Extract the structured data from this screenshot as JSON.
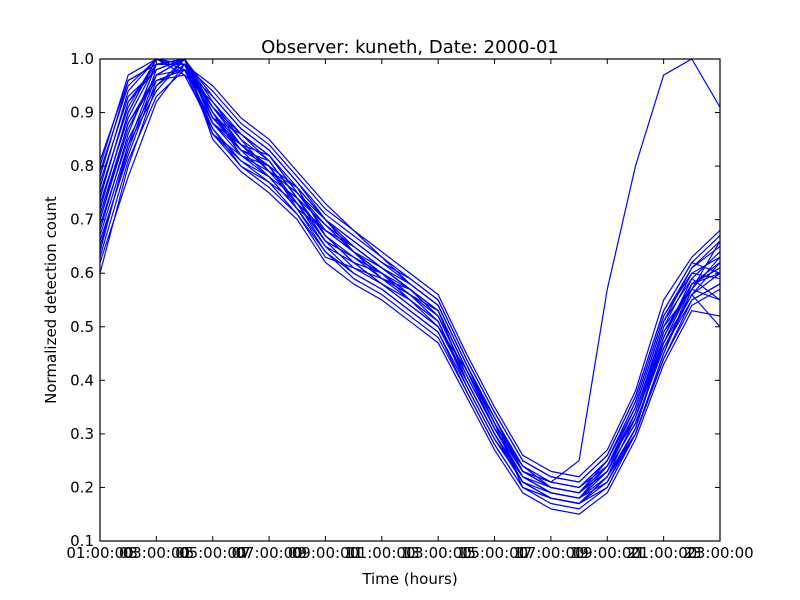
{
  "chart_data": {
    "type": "line",
    "title": "Observer: kuneth, Date: 2000-01",
    "xlabel": "Time (hours)",
    "ylabel": "Normalized detection count",
    "ylim": [
      0.1,
      1.0
    ],
    "grid": false,
    "legend": "none",
    "line_color": "#0000ff",
    "x": [
      "01:00:00",
      "02:00:00",
      "03:00:00",
      "04:00:00",
      "05:00:00",
      "06:00:00",
      "07:00:00",
      "08:00:00",
      "09:00:00",
      "10:00:00",
      "11:00:00",
      "12:00:00",
      "13:00:00",
      "14:00:00",
      "15:00:00",
      "16:00:00",
      "17:00:00",
      "18:00:00",
      "19:00:00",
      "20:00:00",
      "21:00:00",
      "22:00:00",
      "23:00:00"
    ],
    "x_tick_labels": [
      "01:00:00",
      "03:00:00",
      "05:00:00",
      "07:00:00",
      "09:00:00",
      "11:00:00",
      "13:00:00",
      "15:00:00",
      "17:00:00",
      "19:00:00",
      "21:00:00",
      "23:00:00"
    ],
    "x_tick_overlap_labels": [
      "03",
      "05",
      "07",
      "09",
      "11",
      "13",
      "15",
      "17",
      "19",
      "21",
      "23"
    ],
    "y_ticks": [
      "0.1",
      "0.2",
      "0.3",
      "0.4",
      "0.5",
      "0.6",
      "0.7",
      "0.8",
      "0.9",
      "1.0"
    ],
    "series": [
      {
        "values": [
          0.6,
          0.8,
          0.95,
          1.0,
          0.88,
          0.83,
          0.78,
          0.74,
          0.66,
          0.63,
          0.6,
          0.56,
          0.53,
          0.4,
          0.3,
          0.22,
          0.19,
          0.18,
          0.24,
          0.33,
          0.47,
          0.56,
          0.6
        ]
      },
      {
        "values": [
          0.62,
          0.78,
          0.92,
          0.99,
          0.86,
          0.8,
          0.76,
          0.71,
          0.63,
          0.61,
          0.58,
          0.54,
          0.5,
          0.42,
          0.32,
          0.2,
          0.18,
          0.17,
          0.22,
          0.3,
          0.45,
          0.58,
          0.62
        ]
      },
      {
        "values": [
          0.65,
          0.83,
          0.97,
          0.98,
          0.9,
          0.84,
          0.8,
          0.72,
          0.68,
          0.64,
          0.59,
          0.57,
          0.52,
          0.41,
          0.31,
          0.24,
          0.2,
          0.19,
          0.23,
          0.34,
          0.5,
          0.57,
          0.55
        ]
      },
      {
        "values": [
          0.68,
          0.86,
          0.99,
          1.0,
          0.92,
          0.86,
          0.82,
          0.75,
          0.7,
          0.66,
          0.62,
          0.58,
          0.54,
          0.43,
          0.33,
          0.23,
          0.21,
          0.2,
          0.25,
          0.36,
          0.52,
          0.6,
          0.63
        ]
      },
      {
        "values": [
          0.7,
          0.88,
          0.96,
          0.97,
          0.87,
          0.81,
          0.77,
          0.73,
          0.65,
          0.6,
          0.57,
          0.53,
          0.49,
          0.39,
          0.29,
          0.21,
          0.18,
          0.17,
          0.21,
          0.31,
          0.48,
          0.59,
          0.64
        ]
      },
      {
        "values": [
          0.72,
          0.9,
          1.0,
          0.99,
          0.91,
          0.85,
          0.79,
          0.76,
          0.67,
          0.62,
          0.6,
          0.55,
          0.51,
          0.4,
          0.3,
          0.22,
          0.19,
          0.18,
          0.23,
          0.32,
          0.46,
          0.55,
          0.58
        ]
      },
      {
        "values": [
          0.74,
          0.92,
          0.98,
          1.0,
          0.89,
          0.83,
          0.81,
          0.74,
          0.69,
          0.65,
          0.61,
          0.57,
          0.53,
          0.42,
          0.31,
          0.23,
          0.2,
          0.19,
          0.24,
          0.35,
          0.51,
          0.61,
          0.66
        ]
      },
      {
        "values": [
          0.76,
          0.94,
          1.0,
          0.98,
          0.93,
          0.87,
          0.83,
          0.77,
          0.71,
          0.67,
          0.63,
          0.59,
          0.55,
          0.44,
          0.34,
          0.25,
          0.22,
          0.21,
          0.26,
          0.37,
          0.53,
          0.62,
          0.6
        ]
      },
      {
        "values": [
          0.78,
          0.96,
          0.99,
          1.0,
          0.9,
          0.82,
          0.78,
          0.72,
          0.64,
          0.59,
          0.56,
          0.52,
          0.48,
          0.38,
          0.28,
          0.2,
          0.17,
          0.16,
          0.2,
          0.3,
          0.44,
          0.54,
          0.57
        ]
      },
      {
        "values": [
          0.8,
          0.97,
          1.0,
          0.99,
          0.94,
          0.88,
          0.84,
          0.78,
          0.72,
          0.68,
          0.64,
          0.6,
          0.56,
          0.45,
          0.35,
          0.26,
          0.23,
          0.22,
          0.27,
          0.38,
          0.55,
          0.63,
          0.68
        ]
      },
      {
        "values": [
          0.64,
          0.84,
          0.94,
          1.0,
          0.85,
          0.79,
          0.75,
          0.7,
          0.62,
          0.58,
          0.55,
          0.51,
          0.47,
          0.37,
          0.27,
          0.19,
          0.16,
          0.15,
          0.19,
          0.29,
          0.43,
          0.53,
          0.52
        ]
      },
      {
        "values": [
          0.66,
          0.82,
          0.96,
          0.98,
          0.88,
          0.82,
          0.8,
          0.73,
          0.66,
          0.63,
          0.59,
          0.56,
          0.52,
          0.41,
          0.31,
          0.22,
          0.19,
          0.18,
          0.22,
          0.33,
          0.49,
          0.58,
          0.61
        ]
      },
      {
        "values": [
          0.7,
          0.87,
          0.97,
          1.0,
          0.91,
          0.84,
          0.79,
          0.75,
          0.68,
          0.65,
          0.61,
          0.58,
          0.54,
          0.43,
          0.32,
          0.24,
          0.21,
          0.2,
          0.24,
          0.34,
          0.5,
          0.6,
          0.59
        ]
      },
      {
        "values": [
          0.73,
          0.89,
          0.99,
          0.99,
          0.89,
          0.86,
          0.82,
          0.76,
          0.7,
          0.64,
          0.6,
          0.57,
          0.53,
          0.42,
          0.33,
          0.23,
          0.2,
          0.19,
          0.25,
          0.36,
          0.52,
          0.61,
          0.65
        ]
      },
      {
        "values": [
          0.75,
          0.91,
          1.0,
          0.97,
          0.92,
          0.85,
          0.81,
          0.74,
          0.67,
          0.62,
          0.58,
          0.54,
          0.5,
          0.4,
          0.3,
          0.21,
          0.18,
          0.17,
          0.22,
          0.31,
          0.47,
          0.56,
          0.62
        ]
      },
      {
        "values": [
          0.77,
          0.93,
          0.98,
          1.0,
          0.9,
          0.83,
          0.8,
          0.73,
          0.66,
          0.61,
          0.59,
          0.55,
          0.51,
          0.39,
          0.29,
          0.22,
          0.19,
          0.18,
          0.21,
          0.3,
          0.45,
          0.57,
          0.63
        ]
      },
      {
        "values": [
          0.69,
          0.85,
          0.95,
          0.99,
          0.87,
          0.8,
          0.77,
          0.71,
          0.64,
          0.6,
          0.57,
          0.53,
          0.49,
          0.38,
          0.28,
          0.2,
          0.18,
          0.17,
          0.2,
          0.3,
          0.44,
          0.55,
          0.58
        ]
      },
      {
        "values": [
          0.71,
          0.88,
          0.97,
          1.0,
          0.93,
          0.87,
          0.83,
          0.77,
          0.7,
          0.66,
          0.62,
          0.59,
          0.55,
          0.44,
          0.34,
          0.25,
          0.22,
          0.21,
          0.26,
          0.37,
          0.53,
          0.62,
          0.67
        ]
      },
      {
        "values": [
          0.63,
          0.81,
          0.93,
          0.98,
          0.86,
          0.81,
          0.78,
          0.72,
          0.65,
          0.62,
          0.58,
          0.55,
          0.5,
          0.4,
          0.3,
          0.21,
          0.19,
          0.18,
          0.23,
          0.32,
          0.46,
          0.56,
          0.5
        ]
      },
      {
        "values": [
          0.67,
          0.84,
          0.98,
          1.0,
          0.89,
          0.84,
          0.82,
          0.75,
          0.69,
          0.64,
          0.6,
          0.56,
          0.52,
          0.41,
          0.31,
          0.22,
          0.2,
          0.19,
          0.24,
          0.33,
          0.48,
          0.58,
          0.6
        ]
      },
      {
        "values": [
          0.79,
          0.95,
          1.0,
          0.99,
          0.95,
          0.89,
          0.85,
          0.79,
          0.73,
          0.68,
          0.63,
          0.58,
          0.54,
          0.43,
          0.33,
          0.24,
          0.21,
          0.2,
          0.25,
          0.35,
          0.51,
          0.59,
          0.55
        ]
      },
      {
        "values": [
          0.81,
          0.96,
          0.99,
          1.0,
          0.88,
          0.84,
          0.8,
          0.76,
          0.7,
          0.65,
          0.61,
          0.57,
          0.53,
          0.42,
          0.32,
          0.23,
          0.2,
          0.19,
          0.23,
          0.34,
          0.49,
          0.57,
          0.66
        ]
      },
      {
        "values": [
          0.72,
          0.9,
          1.0,
          0.98,
          0.91,
          0.86,
          0.81,
          0.74,
          0.67,
          0.63,
          0.6,
          0.56,
          0.51,
          0.4,
          0.3,
          0.21,
          0.18,
          0.17,
          0.22,
          0.31,
          0.47,
          0.58,
          0.61
        ]
      },
      {
        "values": [
          0.74,
          0.92,
          0.99,
          1.0,
          0.86,
          0.82,
          0.79,
          0.73,
          0.68,
          0.64,
          0.61,
          0.57,
          0.53,
          0.42,
          0.31,
          0.23,
          0.21,
          0.25,
          0.57,
          0.8,
          0.97,
          1.0,
          0.91
        ]
      }
    ]
  }
}
